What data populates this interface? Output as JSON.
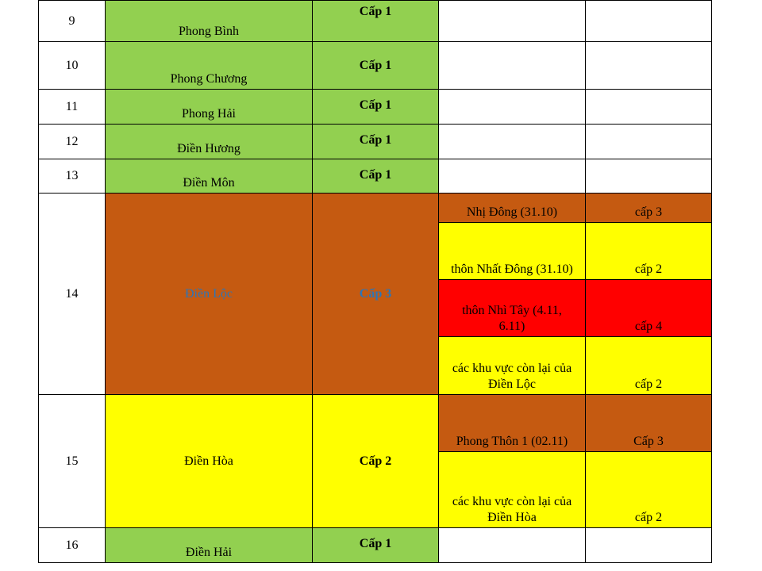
{
  "rows": [
    {
      "no": "9",
      "commune": "Phong Bình",
      "level": "Cấp 1"
    },
    {
      "no": "10",
      "commune": "Phong Chương",
      "level": "Cấp 1"
    },
    {
      "no": "11",
      "commune": "Phong Hải",
      "level": "Cấp 1"
    },
    {
      "no": "12",
      "commune": "Điền Hương",
      "level": "Cấp 1"
    },
    {
      "no": "13",
      "commune": "Điền Môn",
      "level": "Cấp 1"
    },
    {
      "no": "14",
      "commune": "Điền Lộc",
      "level": "Cấp 3",
      "areas": [
        {
          "name": "Nhị Đông (31.10)",
          "level": "cấp 3"
        },
        {
          "name": "thôn Nhất Đông (31.10)",
          "level": "cấp 2"
        },
        {
          "name": "thôn Nhì Tây (4.11, 6.11)",
          "level": "cấp 4"
        },
        {
          "name": "các khu vực còn lại của Điền Lộc",
          "level": "cấp 2"
        }
      ]
    },
    {
      "no": "15",
      "commune": "Điền Hòa",
      "level": "Cấp 2",
      "areas": [
        {
          "name": "Phong Thôn 1 (02.11)",
          "level": "Cấp 3"
        },
        {
          "name": "các khu vực còn lại của Điền Hòa",
          "level": "cấp 2"
        }
      ]
    },
    {
      "no": "16",
      "commune": "Điền Hải",
      "level": "Cấp 1"
    }
  ],
  "colors": {
    "level1": "#92d050",
    "level2": "#ffff00",
    "level3": "#c55a11",
    "level4": "#ff0000",
    "highlight_text": "#2e75b6"
  }
}
